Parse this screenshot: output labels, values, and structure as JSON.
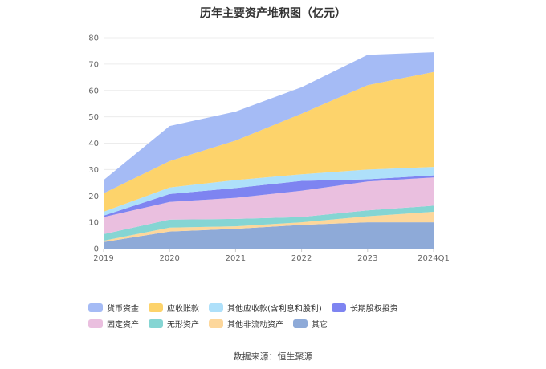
{
  "chart_data": {
    "type": "area",
    "stacked": true,
    "title": "历年主要资产堆积图（亿元）",
    "categories": [
      "2019",
      "2020",
      "2021",
      "2022",
      "2023",
      "2024Q1"
    ],
    "ylim": [
      0,
      80
    ],
    "yticks": [
      0,
      10,
      20,
      30,
      40,
      50,
      60,
      70,
      80
    ],
    "grid": true,
    "legend_position": "bottom",
    "series": [
      {
        "name": "其它",
        "color": "#8eaad8",
        "values": [
          2.5,
          6.5,
          7.5,
          9.0,
          10.0,
          10.0
        ]
      },
      {
        "name": "其他非流动资产",
        "color": "#fdd79b",
        "values": [
          0.5,
          1.5,
          1.0,
          1.0,
          2.3,
          4.0
        ]
      },
      {
        "name": "无形资产",
        "color": "#85d5d3",
        "values": [
          2.5,
          3.0,
          2.8,
          2.0,
          2.2,
          2.3
        ]
      },
      {
        "name": "固定资产",
        "color": "#eabfdf",
        "values": [
          6.5,
          6.7,
          8.0,
          10.0,
          11.0,
          10.7
        ]
      },
      {
        "name": "长期股权投资",
        "color": "#7e84f1",
        "values": [
          0.5,
          3.0,
          3.7,
          3.7,
          0.8,
          0.8
        ]
      },
      {
        "name": "其他应收款(含利息和股利)",
        "color": "#aee0fa",
        "values": [
          1.5,
          2.5,
          3.0,
          2.5,
          3.7,
          3.2
        ]
      },
      {
        "name": "应收账款",
        "color": "#fdd36b",
        "values": [
          7.0,
          10.0,
          15.0,
          23.0,
          32.0,
          36.0
        ]
      },
      {
        "name": "货币资金",
        "color": "#a5bbf5",
        "values": [
          5.0,
          13.3,
          11.0,
          10.0,
          11.5,
          7.5
        ]
      }
    ],
    "legend_order": [
      "货币资金",
      "应收账款",
      "其他应收款(含利息和股利)",
      "长期股权投资",
      "固定资产",
      "无形资产",
      "其他非流动资产",
      "其它"
    ]
  },
  "source_text": "数据来源：恒生聚源"
}
